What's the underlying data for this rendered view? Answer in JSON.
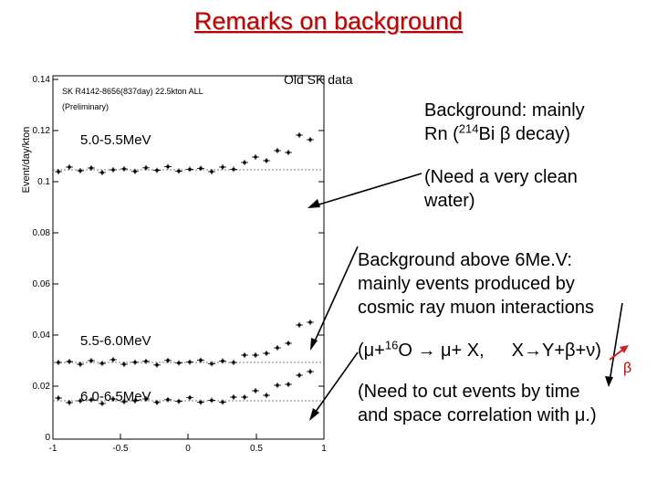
{
  "title": "Remarks on background",
  "image_caption": "Old SK data",
  "plot": {
    "ylabel": "Event/day/kton",
    "header_line1": "SK  R4142-8656(837day)   22.5kton  ALL",
    "header_line2": "(Preliminary)",
    "panel_labels": [
      "5.0-5.5MeV",
      "5.5-6.0MeV",
      "6.0-6.5MeV"
    ],
    "yticks": [
      "0.14",
      "0.12",
      "0.1",
      "0.08",
      "0.06",
      "0.04",
      "0.02",
      "0"
    ],
    "xticks": [
      "-1",
      "-0.5",
      "0",
      "0.5",
      "1"
    ]
  },
  "notes": {
    "bg_line1": "Background: mainly",
    "bg_line2_a": "Rn (",
    "bg_line2_sup": "214",
    "bg_line2_b": "Bi β decay)",
    "water_line1": "(Need a very clean",
    "water_line2": "water)",
    "above_line1": "Background above 6Me.V:",
    "above_line2": "mainly events produced by",
    "above_line3": "cosmic ray muon interactions",
    "reaction_a": "(μ+",
    "reaction_sup": "16",
    "reaction_b": "O → μ+ X,",
    "reaction_c": "X→Y+β+ν)",
    "beta_label": "β",
    "cut_line1": "(Need to cut events by time",
    "cut_line2": "and space correlation with μ.)"
  },
  "colors": {
    "title": "#c00000",
    "arrow_red": "#d02020"
  }
}
